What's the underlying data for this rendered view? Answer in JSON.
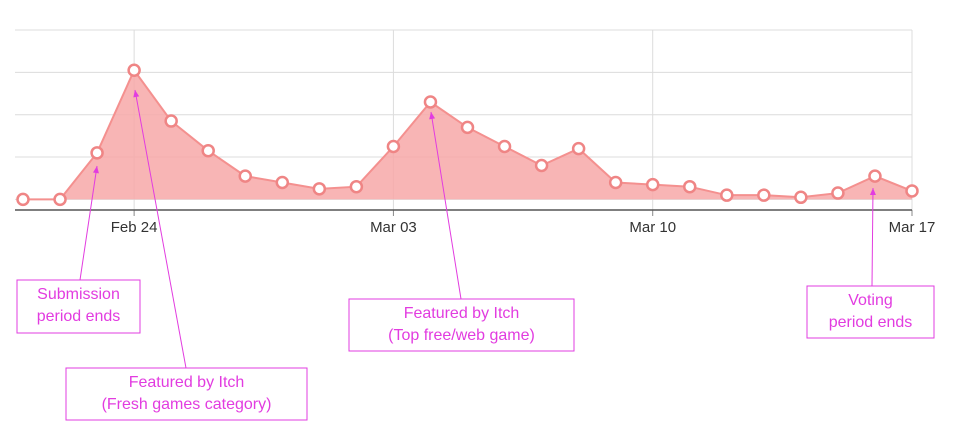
{
  "chart_data": {
    "type": "area",
    "categories": [
      null,
      null,
      null,
      "Feb 24",
      null,
      null,
      null,
      null,
      null,
      null,
      "Mar 03",
      null,
      null,
      null,
      null,
      null,
      null,
      "Mar 10",
      null,
      null,
      null,
      null,
      null,
      null,
      "Mar 17"
    ],
    "values": [
      0,
      0,
      1.1,
      3.05,
      1.85,
      1.15,
      0.55,
      0.4,
      0.25,
      0.3,
      1.25,
      2.3,
      1.7,
      1.25,
      0.8,
      1.2,
      0.4,
      0.35,
      0.3,
      0.1,
      0.1,
      0.05,
      0.15,
      0.55,
      0.2
    ],
    "color": "#f7a8a8",
    "ylim": [
      -0.25,
      4
    ],
    "yticks": [
      0,
      1,
      2,
      3,
      4
    ],
    "grid": true,
    "annotations": [
      {
        "lines": [
          "Submission",
          "period ends"
        ]
      },
      {
        "lines": [
          "Featured by Itch",
          "(Fresh games category)"
        ]
      },
      {
        "lines": [
          "Featured by Itch",
          "(Top free/web game)"
        ]
      },
      {
        "lines": [
          "Voting",
          "period ends"
        ]
      }
    ]
  }
}
